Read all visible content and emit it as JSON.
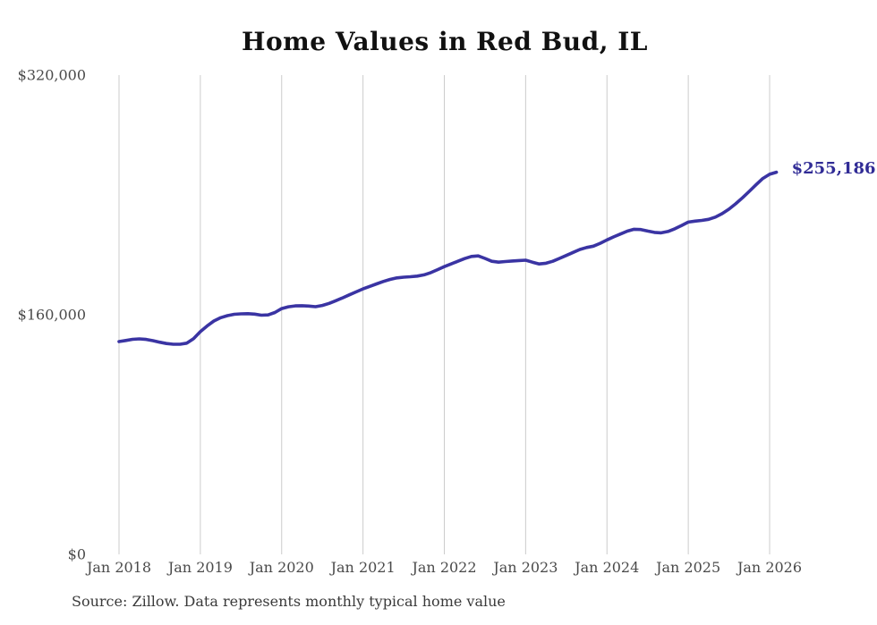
{
  "title": "Home Values in Red Bud, IL",
  "source_note": "Source: Zillow. Data represents monthly typical home value",
  "colors": {
    "line": "#3a34a3",
    "end_label": "#312c96",
    "grid": "#cccccc",
    "axis_text": "#4a4a4a",
    "title_text": "#111111"
  },
  "chart_data": {
    "type": "line",
    "title": "Home Values in Red Bud, IL",
    "series_name": "Monthly typical home value",
    "xlabel": "",
    "ylabel": "",
    "ylim": [
      0,
      320000
    ],
    "grid": "vertical-only",
    "legend": "none",
    "xticks": [
      "Jan 2018",
      "Jan 2019",
      "Jan 2020",
      "Jan 2021",
      "Jan 2022",
      "Jan 2023",
      "Jan 2024",
      "Jan 2025",
      "Jan 2026"
    ],
    "yticks": [
      {
        "label": "$0",
        "value": 0
      },
      {
        "label": "$160,000",
        "value": 160000
      },
      {
        "label": "$320,000",
        "value": 320000
      }
    ],
    "annotation": {
      "text": "$255,186",
      "value": 255186
    },
    "x": [
      "2018-01",
      "2018-02",
      "2018-03",
      "2018-04",
      "2018-05",
      "2018-06",
      "2018-07",
      "2018-08",
      "2018-09",
      "2018-10",
      "2018-11",
      "2018-12",
      "2019-01",
      "2019-02",
      "2019-03",
      "2019-04",
      "2019-05",
      "2019-06",
      "2019-07",
      "2019-08",
      "2019-09",
      "2019-10",
      "2019-11",
      "2019-12",
      "2020-01",
      "2020-02",
      "2020-03",
      "2020-04",
      "2020-05",
      "2020-06",
      "2020-07",
      "2020-08",
      "2020-09",
      "2020-10",
      "2020-11",
      "2020-12",
      "2021-01",
      "2021-02",
      "2021-03",
      "2021-04",
      "2021-05",
      "2021-06",
      "2021-07",
      "2021-08",
      "2021-09",
      "2021-10",
      "2021-11",
      "2021-12",
      "2022-01",
      "2022-02",
      "2022-03",
      "2022-04",
      "2022-05",
      "2022-06",
      "2022-07",
      "2022-08",
      "2022-09",
      "2022-10",
      "2022-11",
      "2022-12",
      "2023-01",
      "2023-02",
      "2023-03",
      "2023-04",
      "2023-05",
      "2023-06",
      "2023-07",
      "2023-08",
      "2023-09",
      "2023-10",
      "2023-11",
      "2023-12",
      "2024-01",
      "2024-02",
      "2024-03",
      "2024-04",
      "2024-05",
      "2024-06",
      "2024-07",
      "2024-08",
      "2024-09",
      "2024-10",
      "2024-11",
      "2024-12",
      "2025-01",
      "2025-02",
      "2025-03",
      "2025-04",
      "2025-05",
      "2025-06",
      "2025-07",
      "2025-08",
      "2025-09",
      "2025-10",
      "2025-11",
      "2025-12",
      "2026-01",
      "2026-02"
    ],
    "values": [
      142100,
      142800,
      143600,
      143900,
      143500,
      142700,
      141700,
      140800,
      140300,
      140300,
      141000,
      144000,
      148700,
      152500,
      155800,
      158000,
      159400,
      160300,
      160600,
      160700,
      160400,
      159700,
      159900,
      161500,
      164100,
      165300,
      165900,
      166000,
      165800,
      165400,
      166200,
      167600,
      169400,
      171300,
      173300,
      175300,
      177250,
      178900,
      180600,
      182200,
      183600,
      184600,
      185100,
      185400,
      185800,
      186600,
      188100,
      190100,
      192100,
      193900,
      195700,
      197500,
      198900,
      199300,
      197600,
      195700,
      195100,
      195500,
      195900,
      196200,
      196400,
      195100,
      193900,
      194400,
      195700,
      197600,
      199600,
      201600,
      203600,
      204900,
      205800,
      207700,
      210000,
      212000,
      213900,
      215800,
      217100,
      216900,
      215900,
      215000,
      214700,
      215600,
      217400,
      219600,
      221850,
      222500,
      223000,
      223700,
      225200,
      227500,
      230500,
      234100,
      238100,
      242400,
      246800,
      251000,
      253800,
      255186
    ]
  }
}
